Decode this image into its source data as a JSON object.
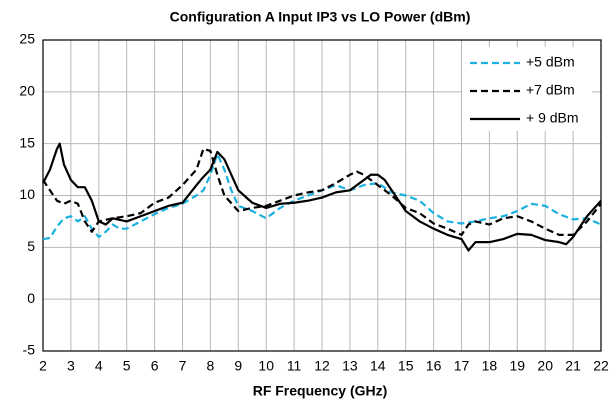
{
  "chart_data": {
    "type": "line",
    "title": "Configuration A Input IP3 vs LO Power (dBm)",
    "x_label": "RF Frequency  (GHz)",
    "xlim": [
      2,
      22
    ],
    "xticks": [
      2,
      3,
      4,
      5,
      6,
      7,
      8,
      9,
      10,
      11,
      12,
      13,
      14,
      15,
      16,
      17,
      18,
      19,
      20,
      21,
      22
    ],
    "ylim": [
      -5,
      25
    ],
    "yticks": [
      -5,
      0,
      5,
      10,
      15,
      20,
      25
    ],
    "grid": true,
    "legend": "upper right",
    "series": [
      {
        "name": "+5 dBm",
        "color": "#1ab0e0",
        "dash": "dashed",
        "x": [
          2,
          2.25,
          2.5,
          2.75,
          3,
          3.25,
          3.5,
          3.75,
          4,
          4.25,
          4.5,
          4.75,
          5,
          5.5,
          6,
          6.5,
          7,
          7.5,
          7.75,
          8,
          8.25,
          8.5,
          8.75,
          9,
          9.5,
          10,
          10.5,
          11,
          11.5,
          12,
          12.5,
          13,
          13.5,
          14,
          14.5,
          15,
          15.5,
          16,
          16.5,
          17,
          17.5,
          18,
          18.5,
          19,
          19.5,
          20,
          20.5,
          21,
          21.5,
          22
        ],
        "values": [
          5.8,
          5.9,
          7,
          7.8,
          8,
          7.5,
          8,
          6.8,
          6,
          6.5,
          7.2,
          6.8,
          6.8,
          7.5,
          8.2,
          8.8,
          9.2,
          10,
          10.5,
          12,
          14,
          12.5,
          10.5,
          9,
          8.5,
          7.8,
          8.8,
          9.5,
          10,
          10.5,
          11,
          10.5,
          11,
          11.2,
          10.3,
          10,
          9.5,
          8.3,
          7.5,
          7.3,
          7.5,
          7.8,
          8,
          8.5,
          9.2,
          9,
          8.2,
          7.7,
          7.8,
          7.2
        ]
      },
      {
        "name": "+7 dBm",
        "color": "#000000",
        "dash": "dashed",
        "x": [
          2,
          2.25,
          2.5,
          2.75,
          3,
          3.25,
          3.5,
          3.75,
          4,
          4.5,
          5,
          5.5,
          6,
          6.5,
          7,
          7.5,
          7.75,
          8,
          8.25,
          8.5,
          9,
          9.5,
          10,
          10.5,
          11,
          11.5,
          12,
          12.5,
          13,
          13.25,
          13.5,
          14,
          14.5,
          15,
          15.5,
          16,
          16.5,
          17,
          17.25,
          17.5,
          18,
          18.5,
          19,
          19.5,
          20,
          20.5,
          21,
          21.5,
          22
        ],
        "values": [
          11.5,
          10.5,
          9.5,
          9.2,
          9.5,
          9.2,
          7.5,
          6.5,
          7.5,
          7.8,
          8,
          8.3,
          9.3,
          9.8,
          11,
          12.5,
          14.5,
          14.3,
          12,
          10,
          8.5,
          8.8,
          9,
          9.5,
          10,
          10.3,
          10.5,
          11.2,
          12,
          12.3,
          12,
          11,
          10,
          8.8,
          8.3,
          7.3,
          6.8,
          6.2,
          7.2,
          7.5,
          7.2,
          7.8,
          8,
          7.5,
          6.8,
          6.2,
          6.2,
          7.5,
          9.2
        ]
      },
      {
        "name": "+ 9 dBm",
        "color": "#000000",
        "dash": "solid",
        "x": [
          2,
          2.25,
          2.5,
          2.6,
          2.75,
          3,
          3.25,
          3.5,
          3.75,
          4,
          4.25,
          4.5,
          5,
          5.5,
          6,
          6.5,
          7,
          7.5,
          7.75,
          8,
          8.25,
          8.5,
          9,
          9.5,
          10,
          10.5,
          11,
          11.5,
          12,
          12.5,
          13,
          13.5,
          13.75,
          14,
          14.25,
          14.5,
          15,
          15.5,
          16,
          16.5,
          17,
          17.25,
          17.5,
          18,
          18.5,
          19,
          19.5,
          20,
          20.5,
          20.75,
          21,
          21.5,
          22
        ],
        "values": [
          11.2,
          12.5,
          14.5,
          15,
          13,
          11.5,
          10.8,
          10.8,
          9.5,
          7.5,
          7.2,
          7.8,
          7.5,
          8,
          8.5,
          9,
          9.3,
          11,
          11.8,
          12.5,
          14.2,
          13.5,
          10.5,
          9.3,
          8.8,
          9.2,
          9.3,
          9.5,
          9.8,
          10.3,
          10.5,
          11.5,
          12,
          12,
          11.5,
          10.5,
          8.5,
          7.5,
          6.8,
          6.2,
          5.8,
          4.7,
          5.5,
          5.5,
          5.8,
          6.3,
          6.2,
          5.7,
          5.5,
          5.3,
          6,
          8,
          9.5
        ]
      }
    ]
  }
}
